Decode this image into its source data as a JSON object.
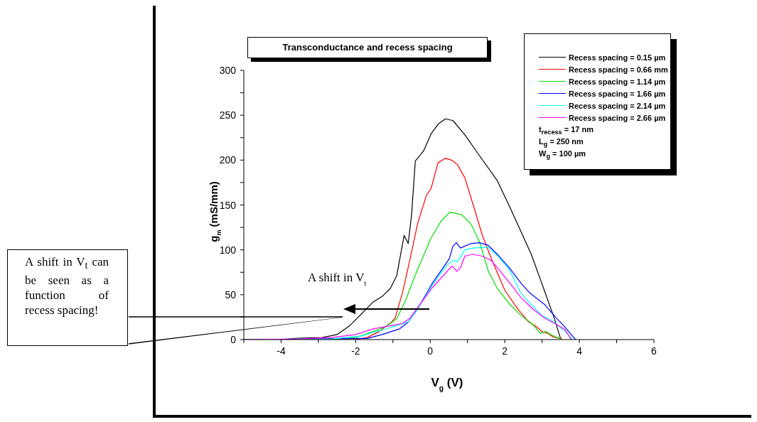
{
  "chart_data": {
    "type": "line",
    "title": "Transconductance and recess spacing",
    "xlabel": "V$_{g}$ (V)",
    "ylabel": "g$_{m}$ (mS/mm)",
    "xlim": [
      -5,
      6
    ],
    "xticks": [
      {
        "value": -5,
        "label": null
      },
      -4,
      {
        "value": -3,
        "label": null
      },
      -2,
      {
        "value": -1,
        "label": null
      },
      0,
      {
        "value": 1,
        "label": null
      },
      2,
      {
        "value": 3,
        "label": null
      },
      4,
      {
        "value": 5,
        "label": null
      },
      6
    ],
    "ylim": [
      0,
      300
    ],
    "yticks": [
      0,
      {
        "value": 25,
        "label": null
      },
      50,
      {
        "value": 75,
        "label": null
      },
      100,
      {
        "value": 125,
        "label": null
      },
      150,
      {
        "value": 175,
        "label": null
      },
      200,
      {
        "value": 225,
        "label": null
      },
      250,
      {
        "value": 275,
        "label": null
      },
      300
    ],
    "legend": "top right",
    "series": [
      {
        "name": "Recess spacing = 0.15 µm",
        "color": "#000000",
        "x": [
          -5,
          -4,
          -3.56,
          -2.9,
          -2.5,
          -2.16,
          -1.93,
          -1.53,
          -1.29,
          -1.07,
          -0.9,
          -0.7,
          -0.59,
          -0.5,
          -0.4,
          -0.18,
          0.02,
          0.21,
          0.41,
          0.61,
          0.93,
          1.32,
          1.8,
          2.12,
          2.35,
          2.71,
          2.99,
          3.3,
          3.5
        ],
        "values": [
          0,
          0,
          1.6,
          2.3,
          5.6,
          15.5,
          25,
          42,
          48,
          57,
          71,
          116,
          107,
          139,
          199,
          210,
          229,
          240,
          246,
          244,
          228,
          205,
          177,
          149,
          128,
          95,
          63,
          27,
          0.7
        ]
      },
      {
        "name": "Recess spacing = 0.66 mm",
        "color": "#ff0000",
        "x": [
          -5,
          -2,
          -1.69,
          -1.37,
          -1.05,
          -0.94,
          -0.74,
          -0.54,
          -0.34,
          -0.1,
          0.02,
          0.21,
          0.41,
          0.57,
          0.73,
          0.93,
          1.16,
          1.4,
          1.64,
          2.0,
          2.35,
          2.63,
          2.83,
          2.99,
          3.15,
          3.3,
          3.54
        ],
        "values": [
          0,
          0,
          2.3,
          9,
          19,
          24,
          53,
          90,
          129,
          161,
          168,
          197,
          202,
          200,
          195,
          180,
          149,
          116,
          90,
          55,
          34,
          20,
          15,
          9,
          7,
          3,
          0.7
        ]
      },
      {
        "name": "Recess spacing = 1.14 µm",
        "color": "#00e000",
        "x": [
          -5,
          -2.64,
          -2,
          -1.53,
          -1.21,
          -0.9,
          -0.66,
          -0.42,
          0.02,
          0.29,
          0.53,
          0.85,
          1.09,
          1.32,
          1.56,
          1.8,
          2.12,
          2.43,
          2.75,
          2.95,
          3.1,
          3.26,
          3.5
        ],
        "values": [
          0,
          0,
          2.3,
          9,
          14,
          23,
          44,
          70,
          113,
          132,
          142,
          139,
          129,
          109,
          76,
          57,
          40,
          27,
          17,
          7,
          9,
          5,
          0.7
        ]
      },
      {
        "name": "Recess spacing = 1.66 µm",
        "color": "#0000ff",
        "x": [
          -5,
          -1.69,
          -1.29,
          -0.82,
          -0.58,
          -0.34,
          0.06,
          0.51,
          0.61,
          0.7,
          0.81,
          1.09,
          1.32,
          1.56,
          1.8,
          2.12,
          2.43,
          2.67,
          3.07,
          3.38,
          3.58,
          3.78,
          3.9
        ],
        "values": [
          0,
          1.3,
          5.6,
          12,
          20,
          34,
          63,
          90,
          104,
          108,
          102,
          107,
          108,
          105,
          95,
          80,
          63,
          52,
          39,
          24,
          15.5,
          5.6,
          0
        ]
      },
      {
        "name": "Recess spacing = 2.14 µm",
        "color": "#00ffff",
        "x": [
          -5,
          -2.64,
          -1.85,
          -1.45,
          -1.21,
          -0.9,
          -0.58,
          -0.34,
          0.06,
          0.45,
          0.61,
          0.73,
          0.93,
          1.16,
          1.56,
          1.84,
          2.12,
          2.43,
          2.75,
          2.99,
          3.3,
          3.54,
          3.7,
          3.82
        ],
        "values": [
          0,
          0.7,
          4,
          9,
          11.5,
          15.5,
          20,
          34,
          61,
          83,
          88,
          87,
          100,
          102,
          103,
          92,
          78,
          52,
          37,
          27,
          20,
          12,
          5.6,
          0
        ]
      },
      {
        "name": "Recess spacing = 2.66 µm",
        "color": "#ff00ff",
        "x": [
          -5,
          -3.43,
          -2.64,
          -2,
          -1.53,
          -1.05,
          -0.74,
          -0.54,
          -0.26,
          0.06,
          0.45,
          0.59,
          0.71,
          0.81,
          0.93,
          1.13,
          1.4,
          1.64,
          1.88,
          2.19,
          2.43,
          2.75,
          3.07,
          3.38,
          3.62,
          3.78
        ],
        "values": [
          0,
          0.7,
          2.3,
          5.6,
          12,
          15.5,
          18,
          24,
          40,
          58,
          76,
          82,
          76,
          80,
          93,
          95,
          93,
          88,
          76,
          60,
          47,
          34,
          24,
          17,
          11,
          0
        ]
      }
    ],
    "annotations": [
      "t$_{recess}$ = 17 nm",
      "L$_{g}$ = 250 nm",
      "W$_{g}$ = 100 µm",
      "A shift in V$_{t}$",
      "A shift in V$_{t}$ can be seen as a function of recess spacing!"
    ]
  }
}
